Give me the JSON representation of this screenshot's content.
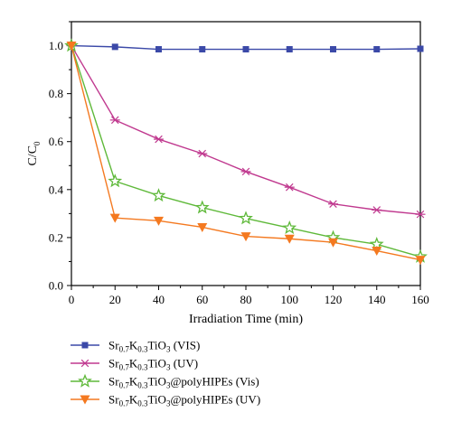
{
  "chart_data": {
    "type": "line",
    "xlabel": "Irradiation Time (min)",
    "ylabel": {
      "main": "C/C",
      "sub": "0"
    },
    "xlim": [
      0,
      160
    ],
    "ylim": [
      0,
      1.1
    ],
    "x_ticks": [
      0,
      20,
      40,
      60,
      80,
      100,
      120,
      140,
      160
    ],
    "y_ticks": [
      0.0,
      0.2,
      0.4,
      0.6,
      0.8,
      1.0
    ],
    "x_tick_labels": [
      "0",
      "20",
      "40",
      "60",
      "80",
      "100",
      "120",
      "140",
      "160"
    ],
    "y_tick_labels": [
      "0.0",
      "0.2",
      "0.4",
      "0.6",
      "0.8",
      "1.0"
    ],
    "grid": false,
    "legend_position": "bottom",
    "x": [
      0,
      20,
      40,
      60,
      80,
      100,
      120,
      140,
      160
    ],
    "series": [
      {
        "name": "Sr0.7K0.3TiO3 (VIS)",
        "label_parts": [
          [
            "Sr",
            ""
          ],
          [
            "0.7",
            "sub"
          ],
          [
            "K",
            ""
          ],
          [
            "0.3",
            "sub"
          ],
          [
            "TiO",
            ""
          ],
          [
            "3",
            "sub"
          ],
          [
            " (VIS)",
            ""
          ]
        ],
        "color": "#3b49a8",
        "marker": "square",
        "values": [
          1.0,
          0.995,
          0.985,
          0.985,
          0.985,
          0.985,
          0.985,
          0.985,
          0.987
        ]
      },
      {
        "name": "Sr0.7K0.3TiO3 (UV)",
        "label_parts": [
          [
            "Sr",
            ""
          ],
          [
            "0.7",
            "sub"
          ],
          [
            "K",
            ""
          ],
          [
            "0.3",
            "sub"
          ],
          [
            "TiO",
            ""
          ],
          [
            "3",
            "sub"
          ],
          [
            " (UV)",
            ""
          ]
        ],
        "color": "#c0398f",
        "marker": "asterisk",
        "values": [
          1.0,
          0.69,
          0.61,
          0.55,
          0.475,
          0.41,
          0.34,
          0.315,
          0.297
        ]
      },
      {
        "name": "Sr0.7K0.3TiO3@polyHIPEs (Vis)",
        "label_parts": [
          [
            "Sr",
            ""
          ],
          [
            "0.7",
            "sub"
          ],
          [
            "K",
            ""
          ],
          [
            "0.3",
            "sub"
          ],
          [
            "TiO",
            ""
          ],
          [
            "3",
            "sub"
          ],
          [
            "@polyHIPEs (Vis)",
            ""
          ]
        ],
        "color": "#5fb93a",
        "marker": "star",
        "values": [
          1.0,
          0.435,
          0.375,
          0.325,
          0.28,
          0.24,
          0.2,
          0.172,
          0.12
        ]
      },
      {
        "name": "Sr0.7K0.3TiO3@polyHIPEs (UV)",
        "label_parts": [
          [
            "Sr",
            ""
          ],
          [
            "0.7",
            "sub"
          ],
          [
            "K",
            ""
          ],
          [
            "0.3",
            "sub"
          ],
          [
            "TiO",
            ""
          ],
          [
            "3",
            "sub"
          ],
          [
            "@polyHIPEs (UV)",
            ""
          ]
        ],
        "color": "#f47920",
        "marker": "triangle-down",
        "values": [
          1.0,
          0.282,
          0.27,
          0.243,
          0.205,
          0.195,
          0.18,
          0.145,
          0.107
        ]
      }
    ]
  }
}
